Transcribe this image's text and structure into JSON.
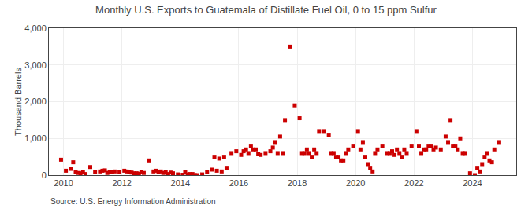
{
  "chart_data": {
    "type": "scatter",
    "title": "Monthly U.S. Exports to Guatemala of Distillate Fuel Oil, 0 to 15 ppm Sulfur",
    "ylabel": "Thousand Barrels",
    "annotations": [
      "Source: U.S. Energy Information Administration"
    ],
    "color": "#cc0000",
    "marker": "square",
    "grid": true,
    "xlim": [
      2009.5,
      2025.5
    ],
    "xticks": [
      2010,
      2012,
      2014,
      2016,
      2018,
      2020,
      2022,
      2024
    ],
    "ylim": [
      0,
      4000
    ],
    "yticks": [
      0,
      {
        "value": 1000,
        "label": "1,000"
      },
      {
        "value": 2000,
        "label": "2,000"
      },
      {
        "value": 3000,
        "label": "3,000"
      },
      {
        "value": 4000,
        "label": "4,000"
      }
    ],
    "x": [
      2009.917,
      2010.083,
      2010.25,
      2010.333,
      2010.417,
      2010.5,
      2010.583,
      2010.667,
      2010.75,
      2010.917,
      2011.083,
      2011.25,
      2011.333,
      2011.417,
      2011.5,
      2011.583,
      2011.667,
      2011.75,
      2011.917,
      2012.083,
      2012.167,
      2012.25,
      2012.333,
      2012.417,
      2012.5,
      2012.583,
      2012.667,
      2012.75,
      2012.917,
      2013.083,
      2013.167,
      2013.25,
      2013.333,
      2013.417,
      2013.5,
      2013.583,
      2013.667,
      2013.75,
      2013.917,
      2014.083,
      2014.167,
      2014.25,
      2014.333,
      2014.417,
      2014.5,
      2014.583,
      2014.75,
      2014.917,
      2015.083,
      2015.167,
      2015.25,
      2015.333,
      2015.417,
      2015.5,
      2015.583,
      2015.75,
      2015.917,
      2016.083,
      2016.167,
      2016.25,
      2016.333,
      2016.417,
      2016.5,
      2016.583,
      2016.667,
      2016.75,
      2016.917,
      2017.083,
      2017.167,
      2017.25,
      2017.333,
      2017.417,
      2017.5,
      2017.583,
      2017.75,
      2017.917,
      2018.083,
      2018.167,
      2018.25,
      2018.333,
      2018.417,
      2018.5,
      2018.583,
      2018.667,
      2018.75,
      2018.917,
      2019.083,
      2019.167,
      2019.25,
      2019.333,
      2019.417,
      2019.5,
      2019.583,
      2019.667,
      2019.75,
      2019.917,
      2020.083,
      2020.167,
      2020.25,
      2020.333,
      2020.417,
      2020.5,
      2020.583,
      2020.667,
      2020.75,
      2020.917,
      2021.083,
      2021.167,
      2021.25,
      2021.333,
      2021.417,
      2021.5,
      2021.583,
      2021.667,
      2021.75,
      2021.917,
      2022.083,
      2022.167,
      2022.25,
      2022.333,
      2022.417,
      2022.5,
      2022.583,
      2022.667,
      2022.75,
      2022.917,
      2023.083,
      2023.167,
      2023.25,
      2023.333,
      2023.417,
      2023.5,
      2023.583,
      2023.667,
      2023.75,
      2023.917,
      2024.083,
      2024.167,
      2024.25,
      2024.333,
      2024.417,
      2024.5,
      2024.583,
      2024.667,
      2024.75,
      2024.917
    ],
    "values": [
      420,
      120,
      170,
      350,
      80,
      60,
      50,
      80,
      30,
      220,
      80,
      100,
      120,
      130,
      60,
      80,
      80,
      100,
      90,
      120,
      100,
      80,
      70,
      50,
      50,
      40,
      80,
      60,
      400,
      100,
      120,
      80,
      100,
      60,
      80,
      30,
      70,
      50,
      20,
      10,
      80,
      20,
      30,
      30,
      0,
      0,
      20,
      80,
      150,
      500,
      120,
      450,
      100,
      500,
      200,
      600,
      650,
      550,
      650,
      700,
      600,
      800,
      700,
      700,
      580,
      550,
      600,
      650,
      750,
      900,
      600,
      1050,
      600,
      1500,
      3500,
      1900,
      1550,
      600,
      600,
      700,
      600,
      500,
      700,
      600,
      1200,
      1200,
      1100,
      600,
      600,
      500,
      500,
      400,
      400,
      600,
      700,
      800,
      1200,
      700,
      900,
      500,
      300,
      200,
      100,
      600,
      700,
      800,
      600,
      600,
      650,
      550,
      700,
      600,
      500,
      700,
      600,
      800,
      1200,
      800,
      600,
      700,
      700,
      800,
      800,
      700,
      750,
      700,
      1050,
      900,
      1500,
      800,
      800,
      700,
      1000,
      600,
      600,
      50,
      0,
      200,
      100,
      300,
      500,
      600,
      400,
      350,
      700,
      900
    ]
  }
}
